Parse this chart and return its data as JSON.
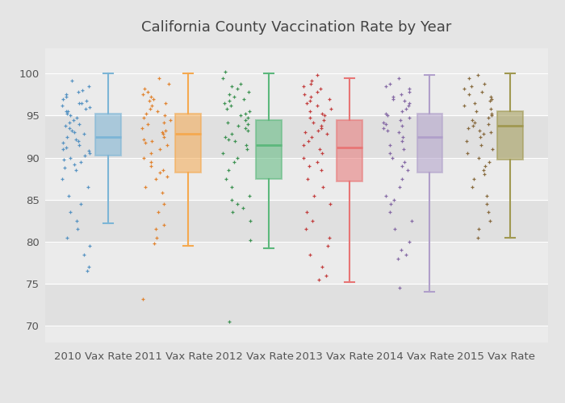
{
  "title": "California County Vaccination Rate by Year",
  "categories": [
    "2010 Vax Rate",
    "2011 Vax Rate",
    "2012 Vax Rate",
    "2013 Vax Rate",
    "2014 Vax Rate",
    "2015 Vax Rate"
  ],
  "box_colors": [
    "#7cb5d6",
    "#f5a94f",
    "#5cb87c",
    "#e87575",
    "#b09fca",
    "#a09850"
  ],
  "scatter_colors": [
    "#4a8cbf",
    "#e07b20",
    "#2e8b45",
    "#c03030",
    "#7d5fa0",
    "#806030"
  ],
  "ylim": [
    68,
    103
  ],
  "yticks": [
    70,
    75,
    80,
    85,
    90,
    95,
    100
  ],
  "background_color": "#e8e8e8",
  "plot_bg_light": "#f0f0f0",
  "plot_bg_dark": "#e8e8e8",
  "grid_color": "#d8d8d8",
  "boxes": [
    {
      "q1": 90.2,
      "median": 92.5,
      "q3": 95.2,
      "whislo": 82.2,
      "whishi": 100.0
    },
    {
      "q1": 88.2,
      "median": 92.8,
      "q3": 95.2,
      "whislo": 79.5,
      "whishi": 100.0
    },
    {
      "q1": 87.5,
      "median": 91.5,
      "q3": 94.5,
      "whislo": 79.2,
      "whishi": 100.0
    },
    {
      "q1": 87.2,
      "median": 91.2,
      "q3": 94.5,
      "whislo": 75.2,
      "whishi": 99.5
    },
    {
      "q1": 88.2,
      "median": 92.5,
      "q3": 95.2,
      "whislo": 74.0,
      "whishi": 99.8
    },
    {
      "q1": 89.8,
      "median": 93.8,
      "q3": 95.5,
      "whislo": 80.5,
      "whishi": 100.0
    }
  ],
  "scatter_data": [
    [
      99.2,
      98.5,
      98.0,
      97.8,
      97.5,
      97.2,
      97.0,
      96.8,
      96.5,
      96.5,
      96.2,
      96.0,
      95.8,
      95.5,
      95.5,
      95.2,
      95.0,
      94.8,
      94.5,
      94.2,
      94.0,
      93.8,
      93.5,
      93.2,
      93.0,
      92.8,
      92.5,
      92.2,
      92.0,
      91.8,
      91.5,
      91.2,
      91.0,
      90.8,
      90.5,
      90.2,
      90.0,
      89.8,
      89.5,
      89.2,
      88.8,
      88.5,
      87.5,
      86.5,
      85.5,
      84.5,
      83.5,
      82.5,
      81.5,
      80.5,
      79.5,
      78.5,
      77.0,
      76.5
    ],
    [
      99.5,
      98.8,
      98.2,
      97.8,
      97.5,
      97.2,
      97.0,
      96.8,
      96.5,
      96.2,
      95.8,
      95.5,
      95.2,
      95.0,
      94.8,
      94.5,
      94.2,
      94.0,
      93.5,
      93.2,
      93.0,
      92.8,
      92.5,
      92.2,
      92.0,
      91.8,
      91.5,
      91.0,
      90.5,
      90.0,
      89.5,
      89.0,
      88.5,
      88.2,
      87.8,
      87.5,
      86.5,
      85.8,
      84.5,
      83.5,
      82.0,
      81.5,
      80.5,
      79.8,
      73.2
    ],
    [
      100.2,
      99.5,
      98.8,
      98.5,
      98.2,
      97.8,
      97.5,
      97.2,
      97.0,
      96.8,
      96.5,
      96.2,
      95.8,
      95.5,
      95.2,
      95.0,
      94.8,
      94.5,
      94.2,
      94.0,
      93.8,
      93.5,
      93.2,
      92.8,
      92.5,
      92.2,
      92.0,
      91.5,
      91.0,
      90.5,
      90.0,
      89.5,
      88.5,
      87.5,
      86.5,
      85.5,
      85.0,
      84.5,
      84.0,
      83.5,
      82.5,
      80.2,
      70.5
    ],
    [
      99.8,
      99.2,
      98.8,
      98.5,
      98.2,
      97.8,
      97.5,
      97.2,
      97.0,
      96.8,
      96.5,
      96.2,
      95.8,
      95.5,
      95.2,
      95.0,
      94.8,
      94.5,
      94.2,
      93.8,
      93.5,
      93.2,
      93.0,
      92.8,
      92.5,
      92.0,
      91.5,
      91.0,
      90.5,
      90.0,
      89.5,
      89.0,
      88.5,
      87.5,
      86.5,
      85.5,
      84.5,
      83.5,
      82.5,
      81.5,
      80.5,
      79.5,
      78.5,
      77.0,
      76.0,
      75.5
    ],
    [
      99.5,
      98.8,
      98.5,
      98.2,
      97.8,
      97.5,
      97.2,
      97.0,
      96.8,
      96.5,
      96.2,
      95.8,
      95.5,
      95.2,
      95.0,
      94.8,
      94.5,
      94.2,
      94.0,
      93.8,
      93.5,
      93.2,
      93.0,
      92.5,
      92.0,
      91.5,
      91.0,
      90.5,
      90.0,
      89.5,
      89.0,
      88.5,
      87.5,
      86.5,
      85.5,
      85.0,
      84.5,
      83.5,
      82.5,
      81.5,
      80.0,
      79.0,
      78.5,
      78.0,
      74.5
    ],
    [
      99.8,
      99.5,
      98.8,
      98.5,
      98.2,
      97.8,
      97.5,
      97.2,
      97.0,
      96.8,
      96.5,
      96.2,
      95.8,
      95.5,
      95.2,
      95.0,
      94.8,
      94.5,
      94.2,
      94.0,
      93.8,
      93.5,
      93.2,
      93.0,
      92.8,
      92.5,
      92.0,
      91.5,
      91.0,
      90.5,
      90.0,
      89.5,
      89.0,
      88.5,
      88.0,
      87.5,
      86.5,
      85.5,
      84.5,
      83.5,
      82.5,
      81.5,
      80.5
    ]
  ]
}
